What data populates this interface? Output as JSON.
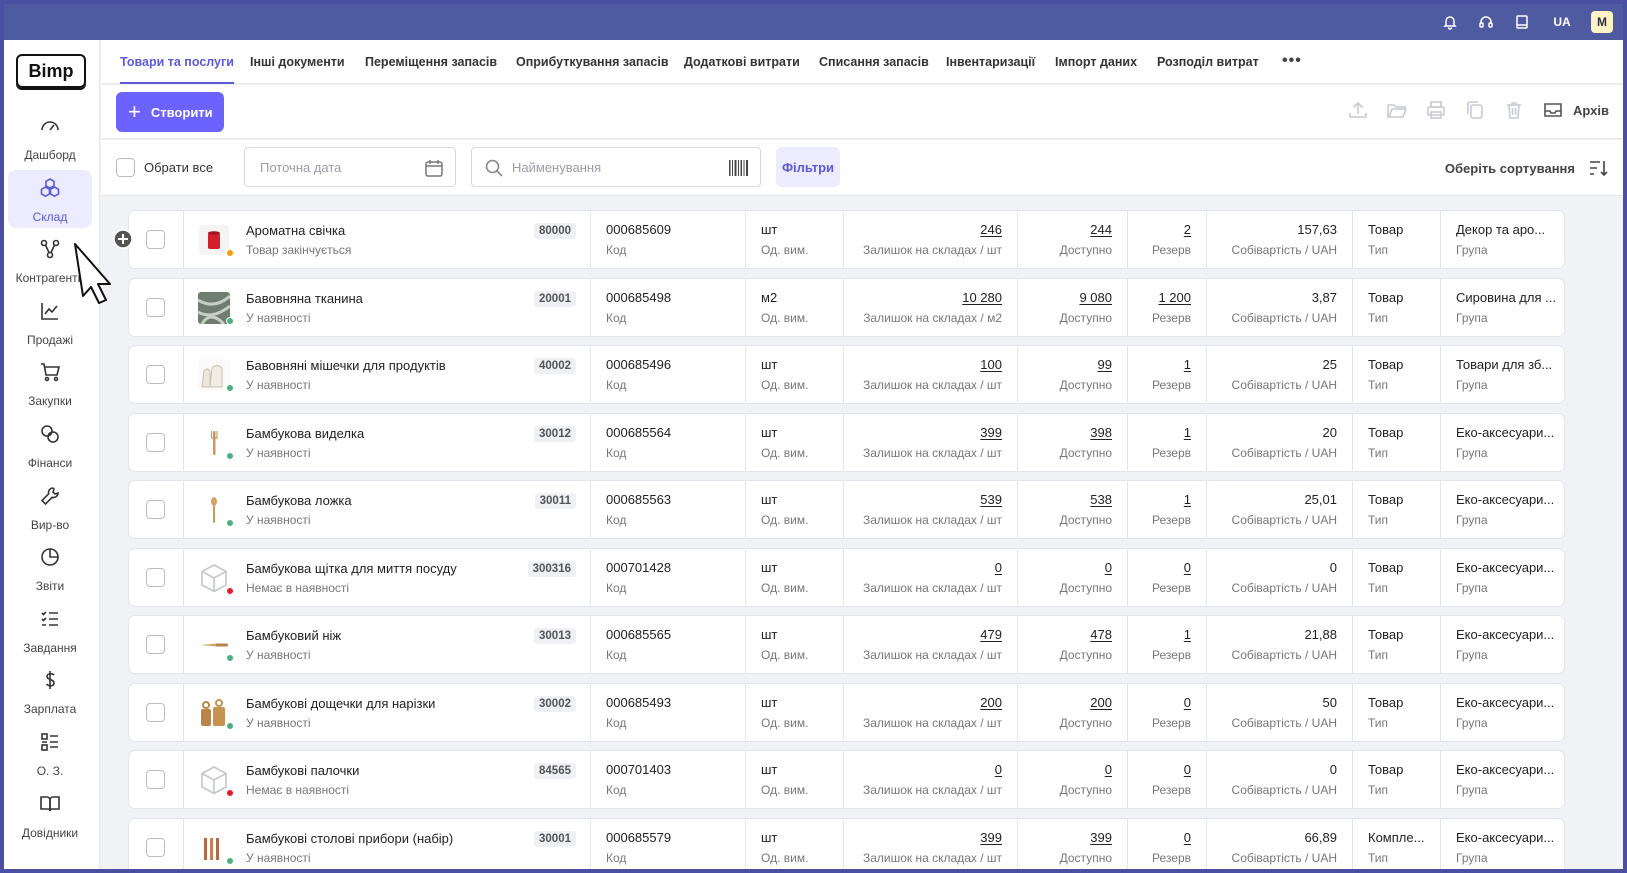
{
  "app": {
    "logo": "Bimp"
  },
  "topbar": {
    "lang": "UA",
    "avatar": "M",
    "icons": [
      "bell-icon",
      "headset-icon",
      "book-icon"
    ]
  },
  "sidebar": {
    "items": [
      {
        "label": "Дашборд",
        "icon": "gauge-icon",
        "active": false
      },
      {
        "label": "Склад",
        "icon": "boxes-icon",
        "active": true
      },
      {
        "label": "Контрагенти",
        "icon": "network-icon",
        "active": false
      },
      {
        "label": "Продажі",
        "icon": "chart-line-icon",
        "active": false
      },
      {
        "label": "Закупки",
        "icon": "cart-icon",
        "active": false
      },
      {
        "label": "Фінанси",
        "icon": "coins-icon",
        "active": false
      },
      {
        "label": "Вир-во",
        "icon": "wrench-icon",
        "active": false
      },
      {
        "label": "Звіти",
        "icon": "pie-chart-icon",
        "active": false
      },
      {
        "label": "Завдання",
        "icon": "tasks-icon",
        "active": false
      },
      {
        "label": "Зарплата",
        "icon": "dollar-icon",
        "active": false
      },
      {
        "label": "О. З.",
        "icon": "assets-list-icon",
        "active": false
      },
      {
        "label": "Довідники",
        "icon": "open-book-icon",
        "active": false
      }
    ]
  },
  "tabs": [
    {
      "label": "Товари та послуги",
      "active": true
    },
    {
      "label": "Інші документи",
      "active": false
    },
    {
      "label": "Переміщення запасів",
      "active": false
    },
    {
      "label": "Оприбуткування запасів",
      "active": false
    },
    {
      "label": "Додаткові витрати",
      "active": false
    },
    {
      "label": "Списання запасів",
      "active": false
    },
    {
      "label": "Інвентаризації",
      "active": false
    },
    {
      "label": "Імпорт даних",
      "active": false
    },
    {
      "label": "Розподіл витрат",
      "active": false
    }
  ],
  "toolbar": {
    "create_label": "Створити",
    "archive_label": "Архів"
  },
  "filters": {
    "select_all_label": "Обрати все",
    "date_placeholder": "Поточна дата",
    "search_placeholder": "Найменування",
    "filters_label": "Фільтри",
    "sort_label": "Оберіть сортування"
  },
  "labels": {
    "code": "Код",
    "unit": "Од. вим.",
    "stock_prefix": "Залишок на складах / ",
    "available": "Доступно",
    "reserve": "Резерв",
    "cost_prefix": "Собівартість / ",
    "type": "Тип",
    "group": "Група"
  },
  "colors": {
    "accent": "#6c63ff",
    "in_stock": "#4caf7d",
    "ending": "#f59e0b",
    "out_of_stock": "#e11d2a",
    "topbar": "#4e5ba0"
  },
  "products": [
    {
      "name": "Ароматна свічка",
      "status": "Товар закінчується",
      "status_color": "#f59e0b",
      "thumb": "candle",
      "code": "80000",
      "sku": "000685609",
      "unit": "шт",
      "stock": "246",
      "available": "244",
      "reserve": "2",
      "cost": "157,63",
      "currency": "UAH",
      "type": "Товар",
      "group": "Декор та аро..."
    },
    {
      "name": "Бавовняна тканина",
      "status": "У наявності",
      "status_color": "#4caf7d",
      "thumb": "fabric",
      "code": "20001",
      "sku": "000685498",
      "unit": "м2",
      "stock": "10 280",
      "available": "9 080",
      "reserve": "1 200",
      "cost": "3,87",
      "currency": "UAH",
      "type": "Товар",
      "group": "Сировина для ..."
    },
    {
      "name": "Бавовняні мішечки для продуктів",
      "status": "У наявності",
      "status_color": "#4caf7d",
      "thumb": "bags",
      "code": "40002",
      "sku": "000685496",
      "unit": "шт",
      "stock": "100",
      "available": "99",
      "reserve": "1",
      "cost": "25",
      "currency": "UAH",
      "type": "Товар",
      "group": "Товари для зб..."
    },
    {
      "name": "Бамбукова виделка",
      "status": "У наявності",
      "status_color": "#4caf7d",
      "thumb": "fork",
      "code": "30012",
      "sku": "000685564",
      "unit": "шт",
      "stock": "399",
      "available": "398",
      "reserve": "1",
      "cost": "20",
      "currency": "UAH",
      "type": "Товар",
      "group": "Еко-аксесуари..."
    },
    {
      "name": "Бамбукова ложка",
      "status": "У наявності",
      "status_color": "#4caf7d",
      "thumb": "spoon",
      "code": "30011",
      "sku": "000685563",
      "unit": "шт",
      "stock": "539",
      "available": "538",
      "reserve": "1",
      "cost": "25,01",
      "currency": "UAH",
      "type": "Товар",
      "group": "Еко-аксесуари..."
    },
    {
      "name": "Бамбукова щітка для миття посуду",
      "status": "Немає в наявності",
      "status_color": "#e11d2a",
      "thumb": "box",
      "code": "300316",
      "sku": "000701428",
      "unit": "шт",
      "stock": "0",
      "available": "0",
      "reserve": "0",
      "cost": "0",
      "currency": "UAH",
      "type": "Товар",
      "group": "Еко-аксесуари..."
    },
    {
      "name": "Бамбуковий ніж",
      "status": "У наявності",
      "status_color": "#4caf7d",
      "thumb": "knife",
      "code": "30013",
      "sku": "000685565",
      "unit": "шт",
      "stock": "479",
      "available": "478",
      "reserve": "1",
      "cost": "21,88",
      "currency": "UAH",
      "type": "Товар",
      "group": "Еко-аксесуари..."
    },
    {
      "name": "Бамбукові дощечки для нарізки",
      "status": "У наявності",
      "status_color": "#4caf7d",
      "thumb": "boards",
      "code": "30002",
      "sku": "000685493",
      "unit": "шт",
      "stock": "200",
      "available": "200",
      "reserve": "0",
      "cost": "50",
      "currency": "UAH",
      "type": "Товар",
      "group": "Еко-аксесуари..."
    },
    {
      "name": "Бамбукові палочки",
      "status": "Немає в наявності",
      "status_color": "#e11d2a",
      "thumb": "box",
      "code": "84565",
      "sku": "000701403",
      "unit": "шт",
      "stock": "0",
      "available": "0",
      "reserve": "0",
      "cost": "0",
      "currency": "UAH",
      "type": "Товар",
      "group": "Еко-аксесуари..."
    },
    {
      "name": "Бамбукові столові прибори (набір)",
      "status": "У наявності",
      "status_color": "#4caf7d",
      "thumb": "cutlery",
      "code": "30001",
      "sku": "000685579",
      "unit": "шт",
      "stock": "399",
      "available": "399",
      "reserve": "0",
      "cost": "66,89",
      "currency": "UAH",
      "type": "Компле...",
      "group": "Еко-аксесуари..."
    }
  ]
}
